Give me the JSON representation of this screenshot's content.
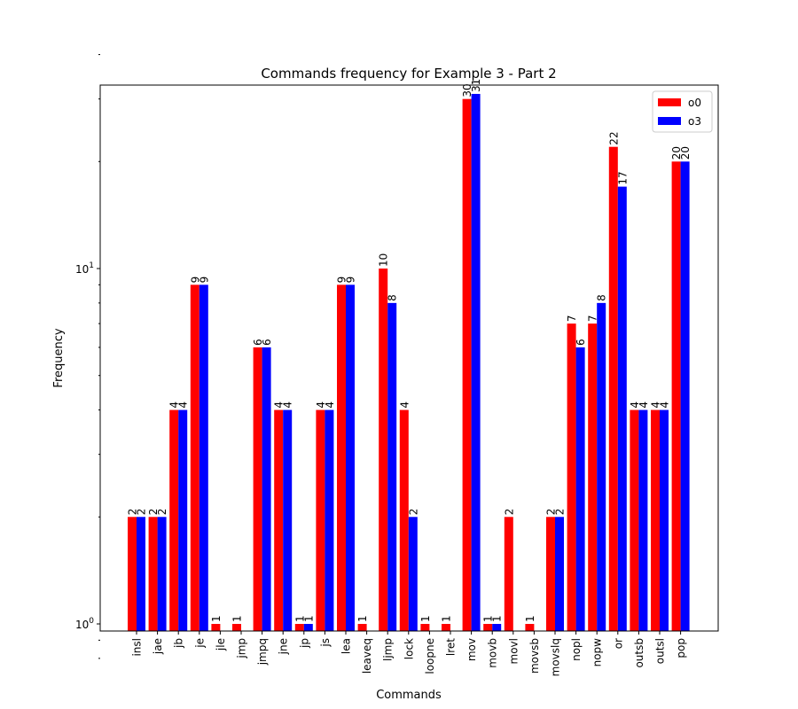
{
  "chart_data": {
    "type": "bar",
    "title": "Commands frequency for Example 3 - Part 2",
    "xlabel": "Commands",
    "ylabel": "Frequency",
    "yscale": "log",
    "ylim": [
      0.79,
      44
    ],
    "y_ticks": [
      {
        "value": 1,
        "base": "10",
        "exp": "0"
      },
      {
        "value": 10,
        "base": "10",
        "exp": "1"
      }
    ],
    "categories": [
      "insl",
      "jae",
      "jb",
      "je",
      "jle",
      "jmp",
      "jmpq",
      "jne",
      "jp",
      "js",
      "lea",
      "leaveq",
      "ljmp",
      "lock",
      "loopne",
      "lret",
      "mov",
      "movb",
      "movl",
      "movsb",
      "movslq",
      "nopl",
      "nopw",
      "or",
      "outsb",
      "outsl",
      "pop"
    ],
    "series": [
      {
        "name": "o0",
        "color": "#ff0000",
        "values": [
          2,
          2,
          4,
          9,
          1,
          1,
          6,
          4,
          1,
          4,
          9,
          1,
          10,
          4,
          1,
          1,
          30,
          1,
          2,
          1,
          2,
          7,
          7,
          22,
          4,
          4,
          20
        ]
      },
      {
        "name": "o3",
        "color": "#0000ff",
        "values": [
          2,
          2,
          4,
          9,
          null,
          null,
          6,
          4,
          1,
          4,
          9,
          null,
          8,
          2,
          null,
          null,
          31,
          1,
          null,
          null,
          2,
          6,
          8,
          17,
          4,
          4,
          20
        ]
      }
    ],
    "legend_position": "top-right",
    "grid": false
  }
}
